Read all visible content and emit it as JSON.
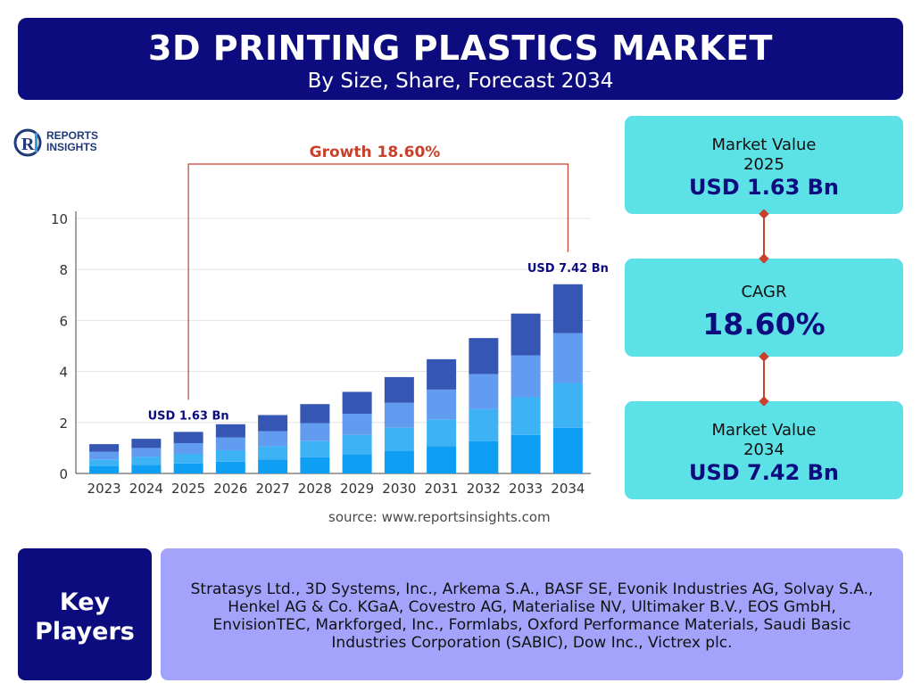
{
  "header": {
    "title": "3D PRINTING PLASTICS MARKET",
    "subtitle": "By Size, Share, Forecast 2034"
  },
  "logo": {
    "line1": "REPORTS",
    "line2": "INSIGHTS"
  },
  "colors": {
    "navy": "#0c0c7e",
    "cyan": "#5ce1e6",
    "lavender": "#a3a3fb",
    "growth_red": "#c8412b",
    "seg1": "#0e9ef4",
    "seg2": "#3db2f5",
    "seg3": "#629cf0",
    "seg4": "#3656b3"
  },
  "chart_data": {
    "type": "bar",
    "stacked": true,
    "categories": [
      "2023",
      "2024",
      "2025",
      "2026",
      "2027",
      "2028",
      "2029",
      "2030",
      "2031",
      "2032",
      "2033",
      "2034"
    ],
    "series": [
      {
        "values": [
          0.28,
          0.33,
          0.39,
          0.46,
          0.54,
          0.64,
          0.76,
          0.9,
          1.07,
          1.27,
          1.51,
          1.79
        ]
      },
      {
        "values": [
          0.27,
          0.32,
          0.38,
          0.45,
          0.53,
          0.63,
          0.75,
          0.89,
          1.05,
          1.25,
          1.48,
          1.76
        ]
      },
      {
        "values": [
          0.3,
          0.35,
          0.42,
          0.5,
          0.59,
          0.7,
          0.83,
          0.98,
          1.17,
          1.38,
          1.64,
          1.95
        ]
      },
      {
        "values": [
          0.3,
          0.36,
          0.44,
          0.52,
          0.63,
          0.75,
          0.86,
          1.01,
          1.19,
          1.41,
          1.64,
          1.92
        ]
      }
    ],
    "totals": [
      1.15,
      1.36,
      1.63,
      1.93,
      2.29,
      2.72,
      3.2,
      3.78,
      4.48,
      5.31,
      6.27,
      7.42
    ],
    "ylim": [
      0,
      10
    ],
    "yticks": [
      0,
      2,
      4,
      6,
      8,
      10
    ],
    "grid": true,
    "growth_label": "Growth 18.60%",
    "annotations": [
      {
        "category": "2025",
        "text": "USD 1.63 Bn"
      },
      {
        "category": "2034",
        "text": "USD 7.42 Bn"
      }
    ]
  },
  "source": "source: www.reportsinsights.com",
  "stats": {
    "box1": {
      "label": "Market Value",
      "year": "2025",
      "value": "USD 1.63 Bn"
    },
    "box2": {
      "label": "CAGR",
      "value": "18.60%"
    },
    "box3": {
      "label": "Market Value",
      "year": "2034",
      "value": "USD 7.42 Bn"
    }
  },
  "key_players": {
    "heading_line1": "Key",
    "heading_line2": "Players",
    "list": "Stratasys Ltd., 3D Systems, Inc., Arkema S.A., BASF SE, Evonik Industries AG, Solvay S.A., Henkel AG & Co. KGaA, Covestro AG, Materialise NV, Ultimaker B.V., EOS GmbH, EnvisionTEC, Markforged, Inc., Formlabs, Oxford Performance Materials, Saudi Basic Industries Corporation (SABIC), Dow Inc., Victrex plc."
  }
}
